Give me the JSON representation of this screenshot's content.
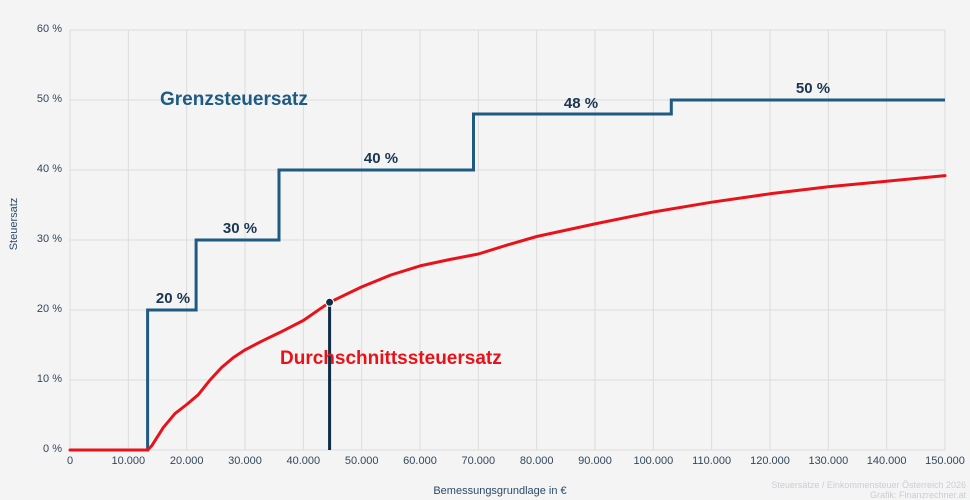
{
  "chart_data": {
    "type": "line",
    "title": "",
    "xlabel": "Bemessungsgrundlage in €",
    "ylabel": "Steuersatz",
    "xlim": [
      0,
      150000
    ],
    "ylim": [
      0,
      60
    ],
    "grid": true,
    "x_ticks": [
      "0",
      "10.000",
      "20.000",
      "30.000",
      "40.000",
      "50.000",
      "60.000",
      "70.000",
      "80.000",
      "90.000",
      "100.000",
      "110.000",
      "120.000",
      "130.000",
      "140.000",
      "150.000"
    ],
    "y_ticks": [
      "0 %",
      "10 %",
      "20 %",
      "30 %",
      "40 %",
      "50 %",
      "60 %"
    ],
    "series": [
      {
        "name": "Grenzsteuersatz",
        "color": "#1e5a82",
        "type": "step",
        "x": [
          0,
          13308,
          13308,
          21617,
          21617,
          35836,
          35836,
          69166,
          69166,
          103072,
          103072,
          150000
        ],
        "values": [
          0,
          0,
          20,
          20,
          30,
          30,
          40,
          40,
          48,
          48,
          50,
          50
        ],
        "bracket_labels": [
          {
            "text": "20 %",
            "x": 17500,
            "y": 20
          },
          {
            "text": "30 %",
            "x": 29000,
            "y": 30
          },
          {
            "text": "40 %",
            "x": 53000,
            "y": 40
          },
          {
            "text": "48 %",
            "x": 87000,
            "y": 48
          },
          {
            "text": "50 %",
            "x": 127000,
            "y": 50
          }
        ]
      },
      {
        "name": "Durchschnittssteuersatz",
        "color": "#e8131a",
        "type": "line",
        "x": [
          0,
          13308,
          14000,
          16000,
          18000,
          20000,
          22000,
          24000,
          26000,
          28000,
          30000,
          33000,
          36000,
          40000,
          44500,
          50000,
          55000,
          60000,
          65000,
          70000,
          75000,
          80000,
          90000,
          100000,
          110000,
          120000,
          130000,
          140000,
          150000
        ],
        "values": [
          0,
          0,
          0.6,
          3.2,
          5.2,
          6.5,
          7.9,
          10.0,
          11.8,
          13.2,
          14.3,
          15.6,
          16.8,
          18.5,
          21.1,
          23.3,
          25.0,
          26.3,
          27.2,
          28.0,
          29.3,
          30.5,
          32.3,
          34.0,
          35.4,
          36.6,
          37.6,
          38.4,
          39.2
        ]
      }
    ],
    "marker": {
      "x": 44500,
      "y": 21.1,
      "color": "#0d2c45"
    },
    "annotations": [
      "Grenzsteuersatz",
      "Durchschnittssteuersatz"
    ]
  },
  "labels": {
    "ylabel": "Steuersatz",
    "xlabel": "Bemessungsgrundlage in €",
    "grenz": "Grenzsteuersatz",
    "durchschnitt": "Durchschnittssteuersatz",
    "credit_line1": "Steuersätze / Einkommensteuer Österreich 2026",
    "credit_line2": "Grafik: Finanzrechner.at",
    "rate20": "20 %",
    "rate30": "30 %",
    "rate40": "40 %",
    "rate48": "48 %",
    "rate50": "50 %"
  },
  "ticks": {
    "y": [
      "0 %",
      "10 %",
      "20 %",
      "30 %",
      "40 %",
      "50 %",
      "60 %"
    ],
    "x": [
      "0",
      "10.000",
      "20.000",
      "30.000",
      "40.000",
      "50.000",
      "60.000",
      "70.000",
      "80.000",
      "90.000",
      "100.000",
      "110.000",
      "120.000",
      "130.000",
      "140.000",
      "150.000"
    ]
  },
  "colors": {
    "grid": "#dcdcdc",
    "step": "#1e5a82",
    "average": "#e8131a",
    "marker": "#0d2c45"
  }
}
